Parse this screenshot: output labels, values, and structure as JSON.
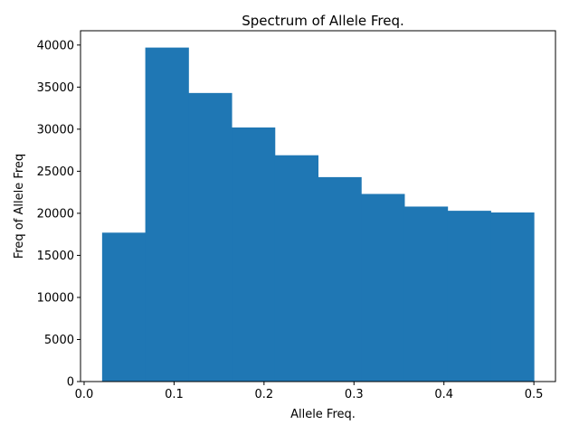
{
  "chart_data": {
    "type": "bar",
    "title": "Spectrum of Allele Freq.",
    "xlabel": "Allele Freq.",
    "ylabel": "Freq of Allele Freq",
    "bin_edges": [
      0.02,
      0.068,
      0.116,
      0.164,
      0.212,
      0.26,
      0.308,
      0.356,
      0.404,
      0.452,
      0.5
    ],
    "values": [
      17700,
      39700,
      34300,
      30200,
      26900,
      24300,
      22300,
      20800,
      20300,
      20100
    ],
    "xlim": [
      -0.004,
      0.524
    ],
    "ylim": [
      0,
      41700
    ],
    "xticks": [
      0.0,
      0.1,
      0.2,
      0.3,
      0.4,
      0.5
    ],
    "xtick_labels": [
      "0.0",
      "0.1",
      "0.2",
      "0.3",
      "0.4",
      "0.5"
    ],
    "yticks": [
      0,
      5000,
      10000,
      15000,
      20000,
      25000,
      30000,
      35000,
      40000
    ],
    "ytick_labels": [
      "0",
      "5000",
      "10000",
      "15000",
      "20000",
      "25000",
      "30000",
      "35000",
      "40000"
    ],
    "bar_color": "#1f77b4",
    "grid": false,
    "legend": "none"
  }
}
